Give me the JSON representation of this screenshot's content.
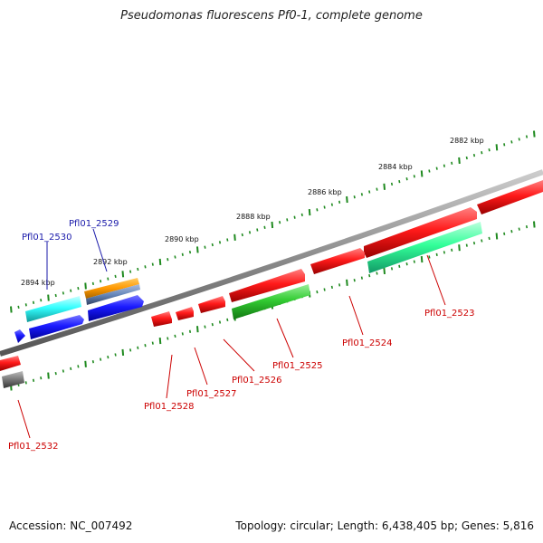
{
  "title": "Pseudomonas fluorescens Pf0-1, complete genome",
  "footer": {
    "accession": "Accession: NC_007492",
    "summary": "Topology: circular; Length: 6,438,405 bp; Genes: 5,816"
  },
  "colors": {
    "backbone": "#8a8a8a",
    "tick": "#1f8a1f",
    "label_red": "#cc0000",
    "label_blue": "#1a1aaa",
    "red": "#ff1a1a",
    "blue": "#1a1aff",
    "cyan": "#33ffff",
    "green": "#33cc33",
    "teal": "#33ff99",
    "orange": "#ff9900",
    "steel": "#6688bb",
    "gray": "#777777"
  },
  "ticks": [
    "2882 kbp",
    "2884 kbp",
    "2886 kbp",
    "2888 kbp",
    "2890 kbp",
    "2892 kbp",
    "2894 kbp"
  ],
  "genes": [
    {
      "name": "Pfl01_2523",
      "label_color": "red"
    },
    {
      "name": "Pfl01_2524",
      "label_color": "red"
    },
    {
      "name": "Pfl01_2525",
      "label_color": "red"
    },
    {
      "name": "Pfl01_2526",
      "label_color": "red"
    },
    {
      "name": "Pfl01_2527",
      "label_color": "red"
    },
    {
      "name": "Pfl01_2528",
      "label_color": "red"
    },
    {
      "name": "Pfl01_2529",
      "label_color": "blue"
    },
    {
      "name": "Pfl01_2530",
      "label_color": "blue"
    },
    {
      "name": "Pfl01_2532",
      "label_color": "red"
    }
  ]
}
